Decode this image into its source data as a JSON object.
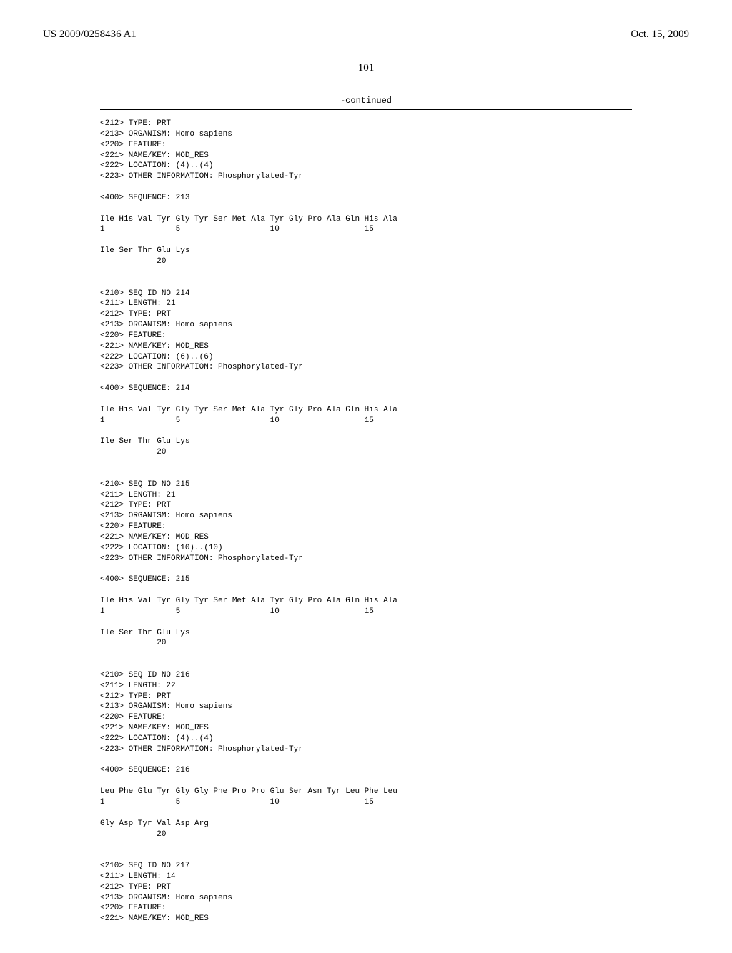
{
  "header": {
    "left": "US 2009/0258436 A1",
    "right": "Oct. 15, 2009"
  },
  "page_number": "101",
  "continued": "-continued",
  "blocks": [
    {
      "lines": [
        "<212> TYPE: PRT",
        "<213> ORGANISM: Homo sapiens",
        "<220> FEATURE:",
        "<221> NAME/KEY: MOD_RES",
        "<222> LOCATION: (4)..(4)",
        "<223> OTHER INFORMATION: Phosphorylated-Tyr",
        "",
        "<400> SEQUENCE: 213",
        ""
      ],
      "seq": [
        "Ile His Val Tyr Gly Tyr Ser Met Ala Tyr Gly Pro Ala Gln His Ala",
        "1               5                   10                  15",
        "",
        "Ile Ser Thr Glu Lys",
        "            20",
        "",
        ""
      ]
    },
    {
      "lines": [
        "<210> SEQ ID NO 214",
        "<211> LENGTH: 21",
        "<212> TYPE: PRT",
        "<213> ORGANISM: Homo sapiens",
        "<220> FEATURE:",
        "<221> NAME/KEY: MOD_RES",
        "<222> LOCATION: (6)..(6)",
        "<223> OTHER INFORMATION: Phosphorylated-Tyr",
        "",
        "<400> SEQUENCE: 214",
        ""
      ],
      "seq": [
        "Ile His Val Tyr Gly Tyr Ser Met Ala Tyr Gly Pro Ala Gln His Ala",
        "1               5                   10                  15",
        "",
        "Ile Ser Thr Glu Lys",
        "            20",
        "",
        ""
      ]
    },
    {
      "lines": [
        "<210> SEQ ID NO 215",
        "<211> LENGTH: 21",
        "<212> TYPE: PRT",
        "<213> ORGANISM: Homo sapiens",
        "<220> FEATURE:",
        "<221> NAME/KEY: MOD_RES",
        "<222> LOCATION: (10)..(10)",
        "<223> OTHER INFORMATION: Phosphorylated-Tyr",
        "",
        "<400> SEQUENCE: 215",
        ""
      ],
      "seq": [
        "Ile His Val Tyr Gly Tyr Ser Met Ala Tyr Gly Pro Ala Gln His Ala",
        "1               5                   10                  15",
        "",
        "Ile Ser Thr Glu Lys",
        "            20",
        "",
        ""
      ]
    },
    {
      "lines": [
        "<210> SEQ ID NO 216",
        "<211> LENGTH: 22",
        "<212> TYPE: PRT",
        "<213> ORGANISM: Homo sapiens",
        "<220> FEATURE:",
        "<221> NAME/KEY: MOD_RES",
        "<222> LOCATION: (4)..(4)",
        "<223> OTHER INFORMATION: Phosphorylated-Tyr",
        "",
        "<400> SEQUENCE: 216",
        ""
      ],
      "seq": [
        "Leu Phe Glu Tyr Gly Gly Phe Pro Pro Glu Ser Asn Tyr Leu Phe Leu",
        "1               5                   10                  15",
        "",
        "Gly Asp Tyr Val Asp Arg",
        "            20",
        "",
        ""
      ]
    },
    {
      "lines": [
        "<210> SEQ ID NO 217",
        "<211> LENGTH: 14",
        "<212> TYPE: PRT",
        "<213> ORGANISM: Homo sapiens",
        "<220> FEATURE:",
        "<221> NAME/KEY: MOD_RES"
      ],
      "seq": []
    }
  ]
}
